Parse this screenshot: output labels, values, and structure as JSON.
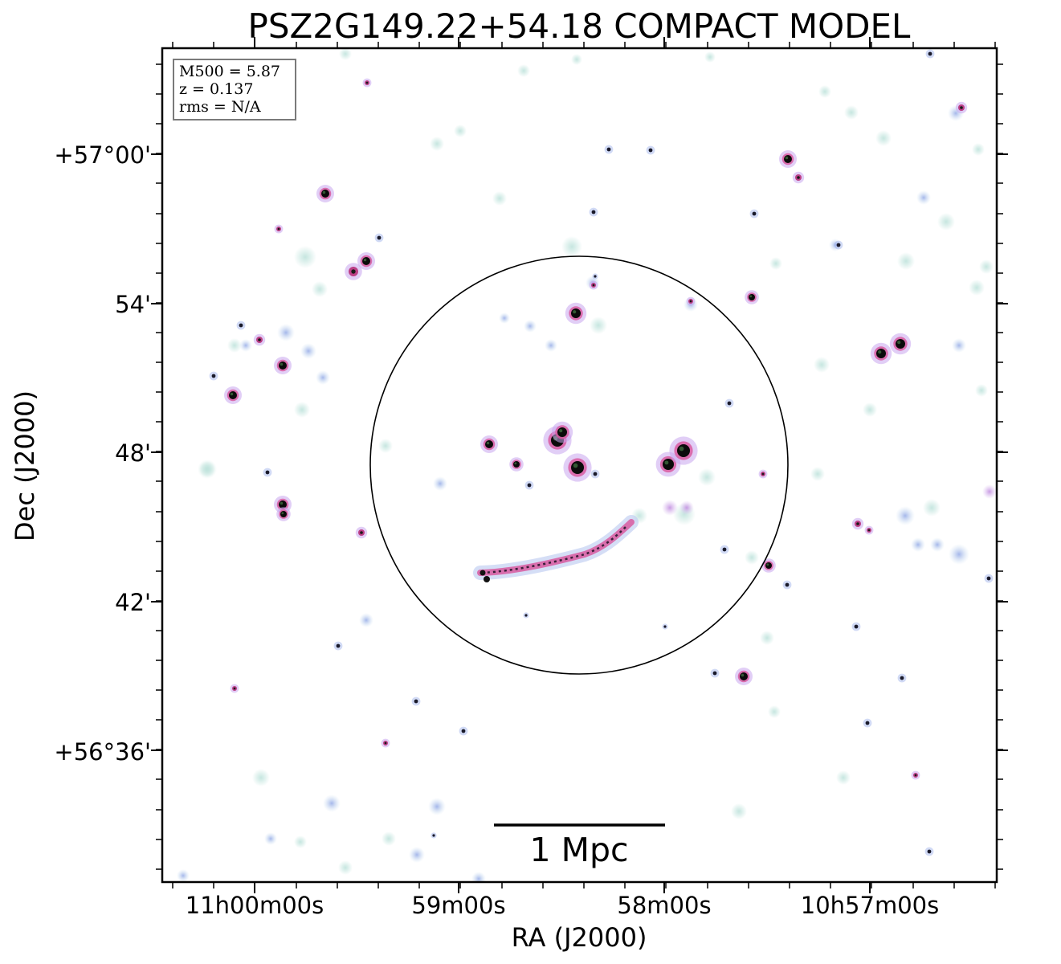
{
  "chart_data": {
    "type": "image",
    "title": "PSZ2G149.22+54.18 COMPACT MODEL",
    "xlabel": "RA (J2000)",
    "ylabel": "Dec (J2000)",
    "x_ticks": [
      "11h00m00s",
      "59m00s",
      "58m00s",
      "10h57m00s"
    ],
    "x_tick_values_sec": [
      0,
      60,
      120,
      180
    ],
    "y_ticks": [
      "+57°00'",
      "54'",
      "48'",
      "42'",
      "+56°36'"
    ],
    "y_tick_values_arcmin": [
      0,
      -6,
      -12,
      -18,
      -24
    ],
    "info_box": [
      "M500 = 5.87",
      "z = 0.137",
      "rms = N/A"
    ],
    "scale_bar_label": "1 Mpc",
    "colors": {
      "source_core": "#000000",
      "source_ring": "#d85aa0",
      "halo_blue": "#9aaee8",
      "halo_green": "#bfe3dc"
    }
  }
}
